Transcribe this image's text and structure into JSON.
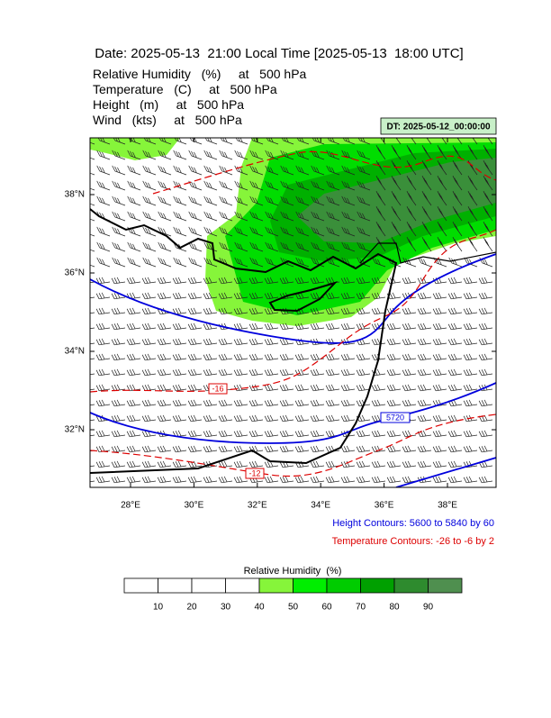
{
  "header": {
    "title": "Date: 2025-05-13  21:00 Local Time [2025-05-13  18:00 UTC]",
    "fields": [
      "Relative Humidity   (%)     at   500 hPa",
      "Temperature   (C)     at   500 hPa",
      "Height   (m)     at   500 hPa",
      "Wind   (kts)     at   500 hPa"
    ]
  },
  "dt_label": "DT: 2025-05-12_00:00:00",
  "map": {
    "lon_ticks": [
      {
        "value": 28,
        "label": "28°E"
      },
      {
        "value": 30,
        "label": "30°E"
      },
      {
        "value": 32,
        "label": "32°E"
      },
      {
        "value": 34,
        "label": "34°E"
      },
      {
        "value": 36,
        "label": "36°E"
      },
      {
        "value": 38,
        "label": "38°E"
      }
    ],
    "lat_ticks": [
      {
        "value": 38,
        "label": "38°N"
      },
      {
        "value": 36,
        "label": "36°N"
      },
      {
        "value": 34,
        "label": "34°N"
      },
      {
        "value": 32,
        "label": "32°N"
      }
    ],
    "contour_labels": [
      "5720",
      "-16",
      "-12"
    ]
  },
  "legend": {
    "height": "Height Contours: 5600 to 5840 by 60",
    "temperature": "Temperature Contours: -26 to -6 by 2"
  },
  "colorbar": {
    "title": "Relative Humidity  (%)",
    "ticks": [
      10,
      20,
      30,
      40,
      50,
      60,
      70,
      80,
      90
    ],
    "colors": [
      "#ffffff",
      "#ffffff",
      "#ffffff",
      "#ffffff",
      "#86f53a",
      "#00ee00",
      "#00cc00",
      "#00a000",
      "#2e8b2e",
      "#4f8f4f"
    ]
  }
}
